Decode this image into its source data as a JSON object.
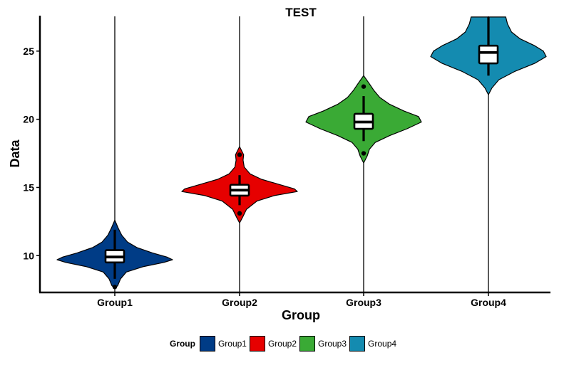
{
  "chart_data": {
    "type": "violin",
    "title": "TEST",
    "xlabel": "Group",
    "ylabel": "Data",
    "categories": [
      "Group1",
      "Group2",
      "Group3",
      "Group4"
    ],
    "ylim": [
      7.3,
      27.6
    ],
    "yticks": [
      10,
      15,
      20,
      25
    ],
    "series": [
      {
        "name": "Group1",
        "color": "#003C86",
        "violin_min": 7.6,
        "violin_max": 12.6,
        "whisker_min": 8.3,
        "q1": 9.5,
        "median": 9.9,
        "q3": 10.4,
        "whisker_max": 11.9,
        "outliers": [
          7.7
        ],
        "profile": [
          [
            7.6,
            0.0
          ],
          [
            7.8,
            0.05
          ],
          [
            8.3,
            0.1
          ],
          [
            8.8,
            0.2
          ],
          [
            9.2,
            0.5
          ],
          [
            9.5,
            0.85
          ],
          [
            9.7,
            1.0
          ],
          [
            9.9,
            0.9
          ],
          [
            10.2,
            0.65
          ],
          [
            10.6,
            0.38
          ],
          [
            11.0,
            0.22
          ],
          [
            11.5,
            0.12
          ],
          [
            12.0,
            0.06
          ],
          [
            12.6,
            0.0
          ]
        ]
      },
      {
        "name": "Group2",
        "color": "#E60000",
        "violin_min": 12.4,
        "violin_max": 18.0,
        "whisker_min": 13.7,
        "q1": 14.4,
        "median": 14.8,
        "q3": 15.2,
        "whisker_max": 15.9,
        "outliers": [
          13.1,
          17.4
        ],
        "profile": [
          [
            12.4,
            0.0
          ],
          [
            12.8,
            0.05
          ],
          [
            13.4,
            0.12
          ],
          [
            14.0,
            0.3
          ],
          [
            14.4,
            0.6
          ],
          [
            14.7,
            1.0
          ],
          [
            14.9,
            0.95
          ],
          [
            15.2,
            0.7
          ],
          [
            15.6,
            0.38
          ],
          [
            16.0,
            0.18
          ],
          [
            16.5,
            0.08
          ],
          [
            17.0,
            0.06
          ],
          [
            17.4,
            0.07
          ],
          [
            18.0,
            0.0
          ]
        ]
      },
      {
        "name": "Group3",
        "color": "#3AAA35",
        "violin_min": 16.8,
        "violin_max": 23.2,
        "whisker_min": 18.4,
        "q1": 19.3,
        "median": 19.8,
        "q3": 20.4,
        "whisker_max": 21.7,
        "outliers": [
          17.5,
          22.4
        ],
        "profile": [
          [
            16.8,
            0.0
          ],
          [
            17.3,
            0.06
          ],
          [
            17.8,
            0.1
          ],
          [
            18.3,
            0.2
          ],
          [
            18.8,
            0.45
          ],
          [
            19.3,
            0.75
          ],
          [
            19.8,
            1.0
          ],
          [
            20.2,
            0.95
          ],
          [
            20.6,
            0.7
          ],
          [
            21.1,
            0.45
          ],
          [
            21.6,
            0.28
          ],
          [
            22.1,
            0.18
          ],
          [
            22.6,
            0.1
          ],
          [
            23.2,
            0.0
          ]
        ]
      },
      {
        "name": "Group4",
        "color": "#148BB0",
        "violin_min": 21.8,
        "violin_max": 27.5,
        "whisker_min": 23.2,
        "q1": 24.1,
        "median": 24.9,
        "q3": 25.4,
        "whisker_max": 27.5,
        "outliers": [],
        "profile": [
          [
            21.8,
            0.0
          ],
          [
            22.3,
            0.06
          ],
          [
            22.9,
            0.18
          ],
          [
            23.5,
            0.45
          ],
          [
            24.1,
            0.8
          ],
          [
            24.6,
            1.0
          ],
          [
            25.0,
            0.95
          ],
          [
            25.4,
            0.8
          ],
          [
            25.9,
            0.55
          ],
          [
            26.4,
            0.4
          ],
          [
            27.0,
            0.33
          ],
          [
            27.5,
            0.3
          ]
        ]
      }
    ],
    "legend": {
      "title": "Group",
      "placement": "bottom"
    },
    "grid": false
  }
}
